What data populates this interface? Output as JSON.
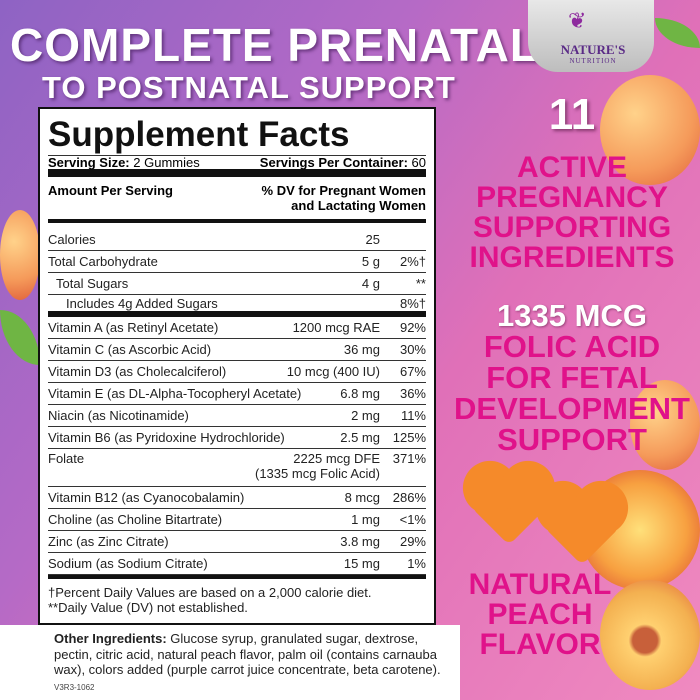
{
  "headline": {
    "line1": "COMPLETE PRENATAL",
    "line2": "TO POSTNATAL SUPPORT"
  },
  "logo": {
    "name": "NATURE'S",
    "sub": "NUTRITION"
  },
  "label": {
    "title": "Supplement Facts",
    "serving_size_label": "Serving Size:",
    "serving_size": "2 Gummies",
    "servings_label": "Servings Per Container:",
    "servings": "60",
    "amount_header": "Amount Per Serving",
    "dv_header": "% DV for Pregnant Women and Lactating Women",
    "rows": [
      {
        "name": "Calories",
        "amount": "25",
        "dv": ""
      },
      {
        "name": "Total Carbohydrate",
        "amount": "5 g",
        "dv": "2%†"
      },
      {
        "name": "Total Sugars",
        "amount": "4 g",
        "dv": "**"
      },
      {
        "name": "Includes 4g Added Sugars",
        "amount": "",
        "dv": "8%†"
      },
      {
        "name": "Vitamin A (as Retinyl Acetate)",
        "amount": "1200 mcg RAE",
        "dv": "92%"
      },
      {
        "name": "Vitamin C (as Ascorbic Acid)",
        "amount": "36 mg",
        "dv": "30%"
      },
      {
        "name": "Vitamin D3 (as Cholecalciferol)",
        "amount": "10 mcg (400 IU)",
        "dv": "67%"
      },
      {
        "name": "Vitamin E (as DL-Alpha-Tocopheryl Acetate)",
        "amount": "6.8 mg",
        "dv": "36%"
      },
      {
        "name": "Niacin (as Nicotinamide)",
        "amount": "2 mg",
        "dv": "11%"
      },
      {
        "name": "Vitamin B6 (as Pyridoxine Hydrochloride)",
        "amount": "2.5 mg",
        "dv": "125%"
      },
      {
        "name": "Folate",
        "amount": "2225 mcg DFE",
        "amount2": "(1335 mcg Folic Acid)",
        "dv": "371%"
      },
      {
        "name": "Vitamin B12 (as Cyanocobalamin)",
        "amount": "8 mcg",
        "dv": "286%"
      },
      {
        "name": "Choline (as Choline Bitartrate)",
        "amount": "1 mg",
        "dv": "<1%"
      },
      {
        "name": "Zinc (as Zinc Citrate)",
        "amount": "3.8 mg",
        "dv": "29%"
      },
      {
        "name": "Sodium (as Sodium Citrate)",
        "amount": "15 mg",
        "dv": "1%"
      }
    ],
    "footnote1": "†Percent Daily Values are based on a 2,000 calorie diet.",
    "footnote2": "**Daily Value (DV) not established."
  },
  "other_ingredients": {
    "label": "Other Ingredients:",
    "text": " Glucose syrup, granulated sugar, dextrose, pectin, citric acid, natural peach flavor, palm oil (contains carnauba wax), colors added (purple carrot juice concentrate, beta carotene)."
  },
  "code": "V3R3-1062",
  "claims": {
    "count": "11",
    "c1": [
      "ACTIVE",
      "PREGNANCY",
      "SUPPORTING",
      "INGREDIENTS"
    ],
    "c2": [
      "1335 MCG",
      "FOLIC ACID",
      "FOR FETAL",
      "DEVELOPMENT",
      "SUPPORT"
    ],
    "c3": [
      "NATURAL",
      "PEACH",
      "FLAVOR"
    ]
  },
  "colors": {
    "accent": "#e0128a",
    "background_start": "#8e63c4",
    "background_end": "#f08ac0"
  }
}
